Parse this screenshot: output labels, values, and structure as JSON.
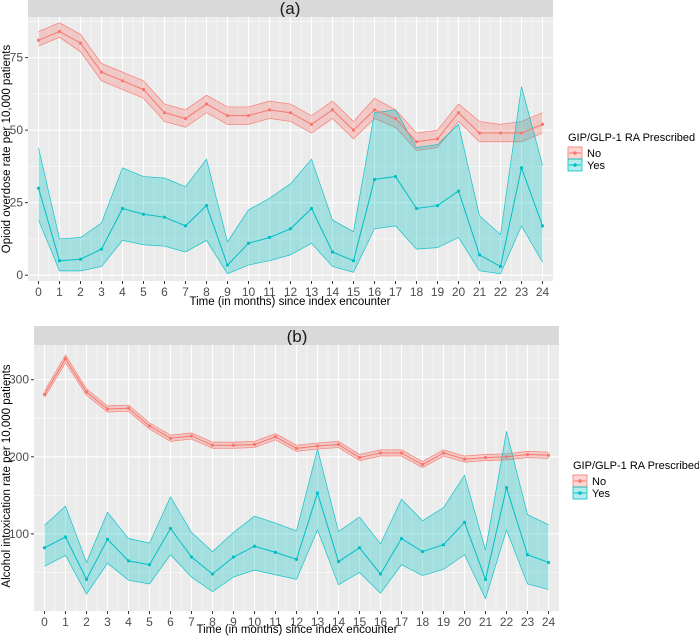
{
  "chart_data": [
    {
      "type": "line",
      "panel_label": "(a)",
      "xlabel": "Time (in months) since index encounter",
      "ylabel": "Opioid overdose rate per 10,000 patients",
      "x": [
        0,
        1,
        2,
        3,
        4,
        5,
        6,
        7,
        8,
        9,
        10,
        11,
        12,
        13,
        14,
        15,
        16,
        17,
        18,
        19,
        20,
        21,
        22,
        23,
        24
      ],
      "xlim": [
        -0.5,
        24.5
      ],
      "ylim": [
        -2,
        89
      ],
      "y_ticks": [
        0,
        25,
        50,
        75
      ],
      "grid": true,
      "legend": {
        "title": "GIP/GLP-1 RA Prescribed",
        "position": "right",
        "entries": [
          "No",
          "Yes"
        ]
      },
      "series": [
        {
          "name": "No",
          "color": "#F8766D",
          "values": [
            81,
            84,
            80,
            70,
            67,
            64,
            56,
            54,
            59,
            55,
            55,
            57,
            56,
            52,
            57,
            50,
            57,
            54,
            46,
            47,
            56,
            49,
            49,
            49,
            52
          ],
          "lower": [
            79,
            82,
            77,
            67,
            64,
            61,
            53,
            51,
            56,
            52,
            52,
            54,
            53,
            49,
            54,
            47,
            54,
            51,
            43,
            44,
            53,
            46,
            46,
            46,
            49
          ],
          "upper": [
            84,
            87,
            83,
            73,
            70,
            67,
            59,
            57,
            62,
            58,
            58,
            60,
            59,
            55,
            60,
            53,
            61,
            57,
            49,
            50,
            59,
            53,
            52,
            53,
            56
          ]
        },
        {
          "name": "Yes",
          "color": "#00BFC4",
          "values": [
            30,
            5,
            5.5,
            9,
            23,
            21,
            20,
            17,
            24,
            3.5,
            11,
            13,
            16,
            23,
            8,
            5,
            33,
            34,
            23,
            24,
            29,
            7,
            3,
            37,
            17
          ],
          "lower": [
            19,
            1.5,
            1.5,
            3,
            12,
            10.5,
            10,
            8,
            12,
            0.5,
            3.5,
            5,
            7,
            11,
            3,
            1,
            16,
            17,
            9,
            9.5,
            13,
            1.5,
            0.5,
            17,
            4.5
          ],
          "upper": [
            44,
            12.5,
            13,
            18,
            37,
            34,
            33.5,
            30.5,
            40,
            11.5,
            22.5,
            26.5,
            31.5,
            40,
            19,
            15,
            56,
            57,
            44,
            45,
            52,
            20.5,
            14,
            65,
            38
          ]
        }
      ]
    },
    {
      "type": "line",
      "panel_label": "(b)",
      "xlabel": "Time (in months) since index encounter",
      "ylabel": "Alcohol intoxication rate per 10,000 patients",
      "x": [
        0,
        1,
        2,
        3,
        4,
        5,
        6,
        7,
        8,
        9,
        10,
        11,
        12,
        13,
        14,
        15,
        16,
        17,
        18,
        19,
        20,
        21,
        22,
        23,
        24
      ],
      "xlim": [
        -0.5,
        24.5
      ],
      "ylim": [
        0,
        345
      ],
      "y_ticks": [
        100,
        200,
        300
      ],
      "grid": true,
      "legend": {
        "title": "GIP/GLP-1 RA Prescribed",
        "position": "right",
        "entries": [
          "No",
          "Yes"
        ]
      },
      "series": [
        {
          "name": "No",
          "color": "#F8766D",
          "values": [
            281,
            327,
            284,
            262,
            263,
            240,
            224,
            227,
            215,
            215,
            216,
            226,
            211,
            214,
            216,
            199,
            205,
            205,
            190,
            205,
            197,
            199,
            200,
            203,
            202
          ],
          "lower": [
            277,
            322,
            280,
            258,
            259,
            236,
            220,
            223,
            211,
            211,
            212,
            222,
            207,
            210,
            212,
            195,
            201,
            201,
            186,
            201,
            193,
            195,
            196,
            199,
            198
          ],
          "upper": [
            285,
            332,
            288,
            266,
            267,
            244,
            228,
            231,
            219,
            219,
            220,
            230,
            215,
            218,
            220,
            203,
            209,
            209,
            194,
            209,
            201,
            203,
            204,
            207,
            206
          ],
          "labels": [
            "",
            "",
            "",
            "",
            "",
            "",
            "",
            "",
            "",
            "",
            "",
            "",
            "",
            "",
            "",
            "",
            "",
            "",
            "",
            "",
            "",
            "",
            "",
            "",
            ""
          ]
        },
        {
          "name": "Yes",
          "color": "#00BFC4",
          "values": [
            82,
            96,
            41,
            93,
            65,
            60,
            107,
            70,
            48,
            70,
            84,
            76,
            67,
            153,
            64,
            82,
            48,
            94,
            77,
            86,
            115,
            41,
            160,
            73,
            63
          ],
          "lower": [
            58,
            72,
            22,
            62,
            40,
            35,
            73,
            44,
            25,
            44,
            53,
            47,
            41,
            105,
            34,
            50,
            23,
            60,
            46,
            54,
            73,
            16,
            105,
            35,
            28
          ],
          "upper": [
            111,
            136,
            63,
            128,
            94,
            88,
            148,
            102,
            77,
            102,
            123,
            114,
            104,
            210,
            103,
            122,
            87,
            145,
            117,
            134,
            176,
            79,
            233,
            125,
            112
          ]
        }
      ]
    }
  ]
}
